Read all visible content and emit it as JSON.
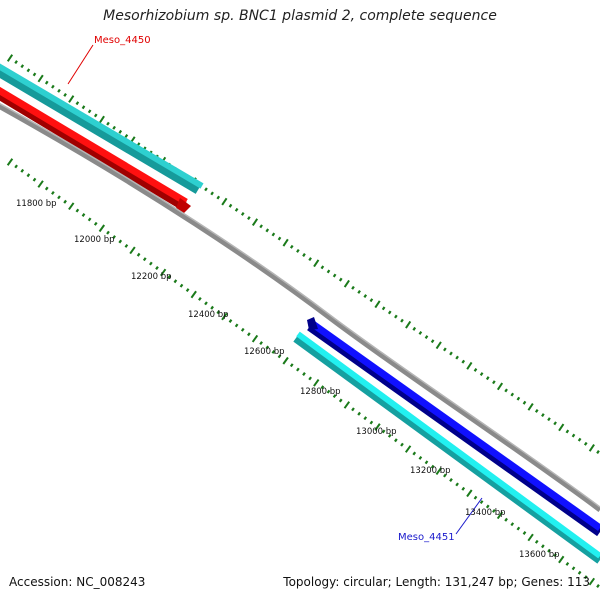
{
  "title": "Mesorhizobium sp. BNC1 plasmid 2, complete sequence",
  "accession_text": "Accession: NC_008243",
  "stats_text": "Topology: circular; Length: 131,247 bp; Genes: 113",
  "scale_labels": [
    "11800 bp",
    "12000 bp",
    "12200 bp",
    "12400 bp",
    "12600 bp",
    "12800 bp",
    "13000 bp",
    "13200 bp",
    "13400 bp",
    "13600 bp"
  ],
  "genes": [
    {
      "name": "Meso_4450",
      "label_color": "#e00000",
      "fill": "#ff0000"
    },
    {
      "name": "Meso_4451",
      "label_color": "#1a1acc",
      "fill": "#0000ee"
    }
  ],
  "colors": {
    "backbone": "#8a8a8a",
    "cds_track": "#22cccc",
    "tick": "#1a7a1a"
  }
}
